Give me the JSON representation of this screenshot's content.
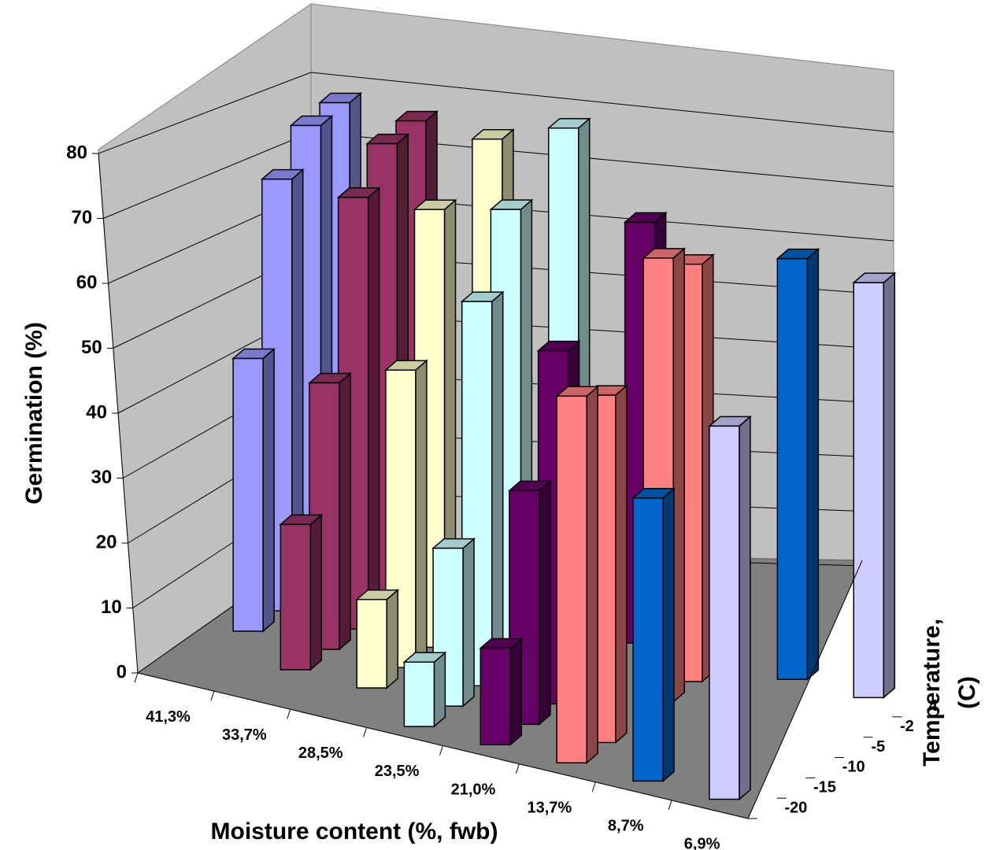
{
  "chart_data": {
    "type": "bar3d",
    "y_label": "Germination (%)",
    "x_label": "Moisture content (%, fwb)",
    "z_label_lines": [
      "Temperature,",
      "(C)"
    ],
    "categories": [
      "41,3%",
      "33,7%",
      "28,5%",
      "23,5%",
      "21,0%",
      "13,7%",
      "8,7%",
      "6,9%"
    ],
    "colors": [
      "#9999ff",
      "#993366",
      "#ffffcc",
      "#ccffff",
      "#660066",
      "#ff8080",
      "#0066cc",
      "#ccccff"
    ],
    "series": [
      {
        "name": "-20",
        "values": [
          null,
          null,
          null,
          10,
          15,
          57,
          44,
          58
        ]
      },
      {
        "name": "-15",
        "values": [
          null,
          23,
          14,
          25,
          37,
          55,
          null,
          null
        ]
      },
      {
        "name": "-10",
        "values": [
          44,
          43,
          48,
          62,
          57,
          null,
          null,
          null
        ]
      },
      {
        "name": "-5",
        "values": [
          71,
          71,
          72,
          75,
          null,
          73,
          null,
          null
        ]
      },
      {
        "name": "-2",
        "values": [
          78,
          78,
          null,
          null,
          null,
          70,
          null,
          null
        ]
      },
      {
        "name": "4",
        "values": [
          80,
          80,
          80,
          85,
          72,
          null,
          72,
          71
        ]
      }
    ],
    "ylim": [
      0,
      80
    ],
    "yticks": [
      0,
      10,
      20,
      30,
      40,
      50,
      60,
      70,
      80
    ],
    "grid": true
  }
}
